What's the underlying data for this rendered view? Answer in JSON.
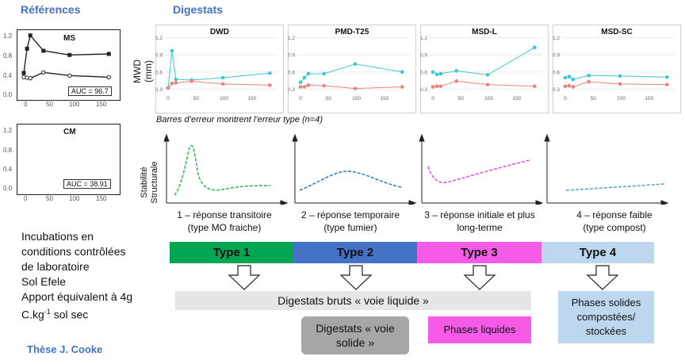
{
  "headings": {
    "references": "Références",
    "digestats": "Digestats",
    "these": "Thèse J. Cooke"
  },
  "ref_plots": [
    {
      "title": "MS",
      "auc": "AUC = 96.7",
      "yticks": [
        "1.2",
        "0.8",
        "0.4",
        "0.0"
      ],
      "xticks": [
        "0",
        "50",
        "100",
        "150"
      ]
    },
    {
      "title": "CM",
      "auc": "AUC = 38.91",
      "yticks": [
        "1.2",
        "0.8",
        "0.4",
        "0.0"
      ],
      "xticks": [
        "0",
        "50",
        "100",
        "150"
      ]
    }
  ],
  "dig_plots": {
    "ylabel": "MWD (mm)",
    "yticks": [
      "1.2",
      "0.9",
      "0.6",
      "0.3"
    ],
    "xticks": [
      "0",
      "50",
      "100",
      "150"
    ],
    "panels": [
      {
        "title": "DWD"
      },
      {
        "title": "PMD-T25"
      },
      {
        "title": "MSD-L"
      },
      {
        "title": "MSD-SC"
      }
    ]
  },
  "error_note": "Barres d’erreur montrent l’erreur type (n=4)",
  "stability_label_1": "Stabilité",
  "stability_label_2": "Structurale",
  "responses": [
    {
      "line1": "1 – réponse transitoire",
      "line2": "(type MO fraiche)",
      "color": "#33b44a"
    },
    {
      "line1": "2 – réponse temporaire",
      "line2": "(type fumier)",
      "color": "#2e75b6"
    },
    {
      "line1": "3 – réponse initiale et plus",
      "line2": "long-terme",
      "color": "#ea4bd5"
    },
    {
      "line1": "4 – réponse faible",
      "line2": "(type compost)",
      "color": "#5b9bd5"
    }
  ],
  "types": [
    {
      "label": "Type 1",
      "color": "#00a651"
    },
    {
      "label": "Type 2",
      "color": "#4472c4"
    },
    {
      "label": "Type 3",
      "color": "#f55be6"
    },
    {
      "label": "Type 4",
      "color": "#bdd7ee"
    }
  ],
  "incubation": [
    "Incubations en",
    "conditions contrôlées",
    "de laboratoire",
    "Sol Efele",
    "Apport équivalent à 4g",
    "C.kg",
    "-1",
    " sol sec"
  ],
  "boxes": {
    "bruts": "Digestats bruts « voie liquide »",
    "solide_1": "Digestats « voie",
    "solide_2": "solide »",
    "liquides": "Phases liquides",
    "compost_1": "Phases solides",
    "compost_2": "compostées/",
    "compost_3": "stockées"
  },
  "chart_data": [
    {
      "type": "line",
      "title": "MS",
      "x": [
        0,
        7,
        14,
        42,
        98,
        182
      ],
      "series": [
        {
          "values": [
            0.42,
            0.88,
            1.13,
            0.84,
            0.76,
            0.78
          ]
        },
        {
          "values": [
            0.34,
            0.33,
            0.32,
            0.43,
            0.37,
            0.34
          ]
        }
      ],
      "ylim": [
        0,
        1.2
      ]
    },
    {
      "type": "line",
      "title": "CM",
      "x": [
        0,
        7,
        14,
        42,
        98,
        182
      ],
      "series": [
        {
          "values": [
            0.38,
            0.44,
            0.55,
            0.62,
            0.61,
            0.57
          ]
        },
        {
          "values": [
            0.36,
            0.34,
            0.38,
            0.43,
            0.38,
            0.35
          ]
        }
      ],
      "ylim": [
        0,
        1.2
      ]
    },
    {
      "type": "line",
      "title": "DWD",
      "x": [
        0,
        7,
        14,
        42,
        98,
        182
      ],
      "series": [
        {
          "values": [
            0.32,
            0.97,
            0.47,
            0.46,
            0.5,
            0.58
          ]
        },
        {
          "values": [
            0.32,
            0.4,
            0.41,
            0.44,
            0.39,
            0.37
          ]
        }
      ],
      "ylim": [
        0.25,
        1.25
      ]
    },
    {
      "type": "line",
      "title": "PMD-T25",
      "x": [
        0,
        7,
        14,
        42,
        98,
        182
      ],
      "series": [
        {
          "values": [
            0.42,
            0.5,
            0.57,
            0.57,
            0.74,
            0.6
          ]
        },
        {
          "values": [
            0.34,
            0.34,
            0.37,
            0.36,
            0.31,
            0.34
          ]
        }
      ],
      "ylim": [
        0.25,
        1.25
      ]
    },
    {
      "type": "line",
      "title": "MSD-L",
      "x": [
        0,
        7,
        14,
        42,
        98,
        182
      ],
      "series": [
        {
          "values": [
            0.6,
            0.56,
            0.57,
            0.62,
            0.55,
            1.03
          ]
        },
        {
          "values": [
            0.34,
            0.35,
            0.35,
            0.44,
            0.38,
            0.35
          ]
        }
      ],
      "ylim": [
        0.25,
        1.25
      ]
    },
    {
      "type": "line",
      "title": "MSD-SC",
      "x": [
        0,
        7,
        14,
        42,
        98,
        182
      ],
      "series": [
        {
          "values": [
            0.5,
            0.52,
            0.47,
            0.54,
            0.53,
            0.51
          ]
        },
        {
          "values": [
            0.35,
            0.36,
            0.34,
            0.43,
            0.39,
            0.38
          ]
        }
      ],
      "ylim": [
        0.25,
        1.25
      ]
    }
  ]
}
